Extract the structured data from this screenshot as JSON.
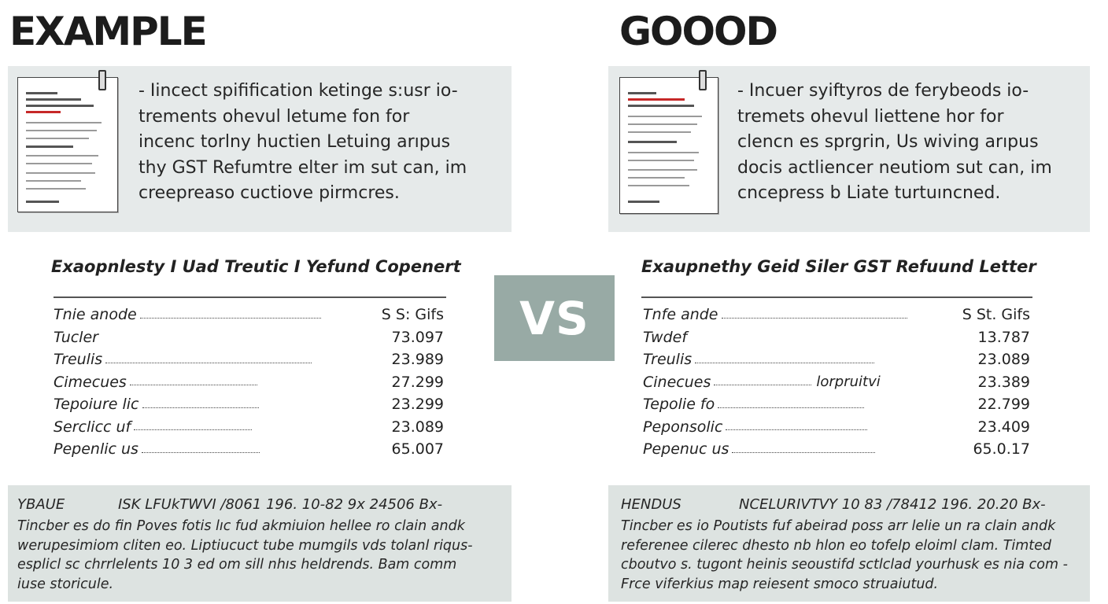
{
  "vs_label": "VS",
  "left": {
    "heading": "EXAMPLE",
    "intro": "- Iincect spifification ketinge s:usr io-\ntrements ohevul letume fon for\nincenc torlny huctien Letuing arıpus\nthy GST Refumtre elter im sut can, im\ncreepreaso cuctiove pirmcres.",
    "table_title": "Exaopnlesty I Uad Treutic I Yefund Copenert",
    "rows": [
      {
        "label": "Tnie anode",
        "mid": "",
        "value": "S S: Gifs"
      },
      {
        "label": "Tucler",
        "mid": "",
        "value": "73.097"
      },
      {
        "label": "Treulis",
        "mid": "",
        "value": "23.989"
      },
      {
        "label": "Cimecues",
        "mid": "",
        "value": "27.299"
      },
      {
        "label": "Tepoiure lic",
        "mid": "",
        "value": "23.299"
      },
      {
        "label": "Serclicc uf",
        "mid": "",
        "value": "23.089"
      },
      {
        "label": "Pepenlic us",
        "mid": "",
        "value": "65.007"
      }
    ],
    "footer_tag": "YBAUE",
    "footer_code": "ISK LFUkTWVI /8061  196.  10-82  9x 24506  Bx-",
    "footer_text": "Tincber es do fin Poves fotis lıc fud akmiuion hellee ro clain andk\nwerupesimiom cliten eo. Liptiucuct tube mumgils vds tolanl riqus-\nesplicl sc chrrlelents 10 3 ed om sill nhıs heldrends. Bam  comm\niuse storicule."
  },
  "right": {
    "heading": "GOOOD",
    "intro": "- Incuer syiftyros de ferybeods io-\ntremets ohevul liettene hor for\nclencn es sprgrin, Us wiving arıpus\ndocis actliencer neutiom sut can, im\ncncepress b Liate turtuıncned.",
    "table_title": "Exaupnethy Geid Siler GST Refuund Letter",
    "rows": [
      {
        "label": "Tnfe ande",
        "mid": "",
        "value": "S St. Gifs"
      },
      {
        "label": "Twdef",
        "mid": "",
        "value": "13.787"
      },
      {
        "label": "Treulis",
        "mid": "",
        "value": "23.089"
      },
      {
        "label": "Cinecues",
        "mid": "lorpruitvi",
        "value": "23.389"
      },
      {
        "label": "Tepolie fo",
        "mid": "",
        "value": "22.799"
      },
      {
        "label": "Peponsolic",
        "mid": "",
        "value": "23.409"
      },
      {
        "label": "Pepenuc us",
        "mid": "",
        "value": "65.0.17"
      }
    ],
    "footer_tag": "HENDUS",
    "footer_code": "NCELURIVTVY 10 83 /78412  196.  20.20  Bx-",
    "footer_text": "Tincber es io Poutists fuf abeirad poss arr lelie un ra clain andk\nreferenee cilerec dhesto nb hlon eo tofelp eloiml clam. Timted\ncboutvo s.  tugont heinis seoustifd sctlclad yourhusk es nia com -\nFrce viferkius map reiesent smoco struaiutud."
  }
}
